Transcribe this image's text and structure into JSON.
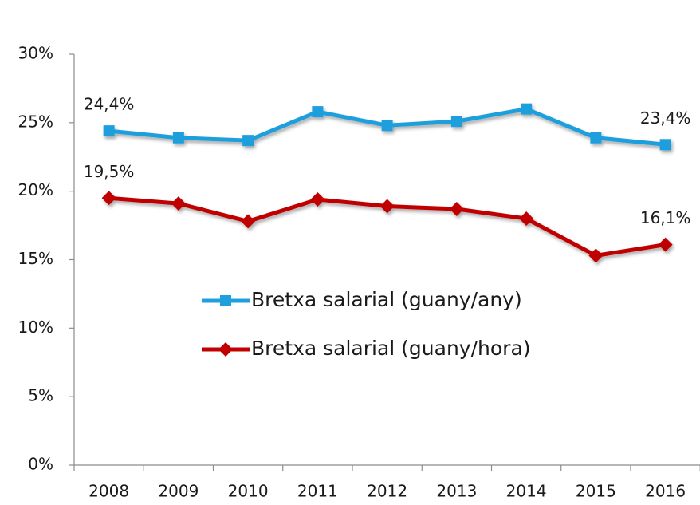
{
  "chart_data": {
    "type": "line",
    "categories": [
      "2008",
      "2009",
      "2010",
      "2011",
      "2012",
      "2013",
      "2014",
      "2015",
      "2016"
    ],
    "series": [
      {
        "name": "Bretxa salarial (guany/any)",
        "color": "#1f9fdc",
        "marker": "square",
        "values": [
          24.4,
          23.9,
          23.7,
          25.8,
          24.8,
          25.1,
          26.0,
          23.9,
          23.4
        ],
        "value_labels": [
          "24,4%",
          null,
          null,
          null,
          null,
          null,
          null,
          null,
          "23,4%"
        ]
      },
      {
        "name": "Bretxa salarial (guany/hora)",
        "color": "#c00000",
        "marker": "diamond",
        "values": [
          19.5,
          19.1,
          17.8,
          19.4,
          18.9,
          18.7,
          18.0,
          15.3,
          16.1
        ],
        "value_labels": [
          "19,5%",
          null,
          null,
          null,
          null,
          null,
          null,
          null,
          "16,1%"
        ]
      }
    ],
    "ylim": [
      0,
      30
    ],
    "yticks": [
      {
        "value": 0,
        "label": "0%"
      },
      {
        "value": 5,
        "label": "5%"
      },
      {
        "value": 10,
        "label": "10%"
      },
      {
        "value": 15,
        "label": "15%"
      },
      {
        "value": 20,
        "label": "20%"
      },
      {
        "value": 25,
        "label": "25%"
      },
      {
        "value": 30,
        "label": "30%"
      }
    ],
    "grid": false,
    "legend": "center"
  }
}
